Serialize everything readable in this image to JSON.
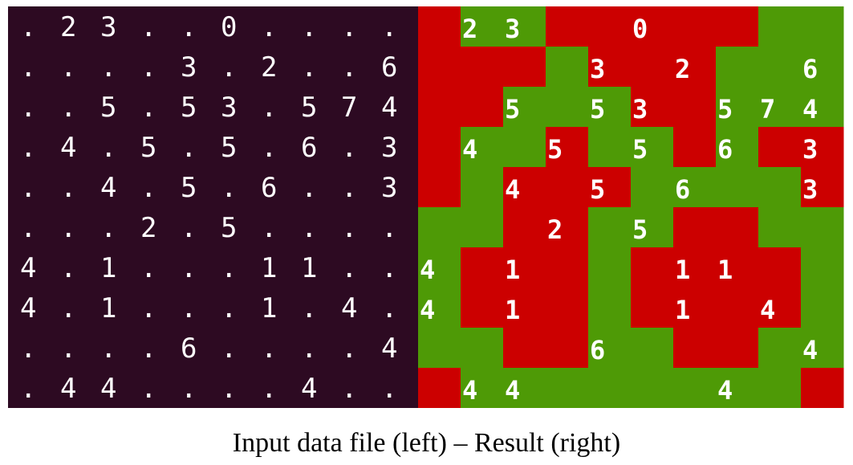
{
  "caption": "Input data file (left) – Result (right)",
  "colors": {
    "input_background": "#2d0a22",
    "input_text": "#ffffff",
    "result_red": "#cc0000",
    "result_green": "#4e9a06",
    "result_text": "#ffffff"
  },
  "input_grid": [
    [
      ".",
      "2",
      "3",
      ".",
      ".",
      "0",
      ".",
      ".",
      ".",
      "."
    ],
    [
      ".",
      ".",
      ".",
      ".",
      "3",
      ".",
      "2",
      ".",
      ".",
      "6"
    ],
    [
      ".",
      ".",
      "5",
      ".",
      "5",
      "3",
      ".",
      "5",
      "7",
      "4"
    ],
    [
      ".",
      "4",
      ".",
      "5",
      ".",
      "5",
      ".",
      "6",
      ".",
      "3"
    ],
    [
      ".",
      ".",
      "4",
      ".",
      "5",
      ".",
      "6",
      ".",
      ".",
      "3"
    ],
    [
      ".",
      ".",
      ".",
      "2",
      ".",
      "5",
      ".",
      ".",
      ".",
      "."
    ],
    [
      "4",
      ".",
      "1",
      ".",
      ".",
      ".",
      "1",
      "1",
      ".",
      "."
    ],
    [
      "4",
      ".",
      "1",
      ".",
      ".",
      ".",
      "1",
      ".",
      "4",
      "."
    ],
    [
      ".",
      ".",
      ".",
      ".",
      "6",
      ".",
      ".",
      ".",
      ".",
      "4"
    ],
    [
      ".",
      "4",
      "4",
      ".",
      ".",
      ".",
      ".",
      "4",
      ".",
      "."
    ]
  ],
  "result_colors": [
    [
      "R",
      "G",
      "G",
      "R",
      "R",
      "R",
      "R",
      "R",
      "G",
      "G"
    ],
    [
      "R",
      "R",
      "R",
      "G",
      "R",
      "R",
      "R",
      "G",
      "G",
      "G"
    ],
    [
      "R",
      "R",
      "G",
      "G",
      "G",
      "R",
      "R",
      "G",
      "G",
      "G"
    ],
    [
      "R",
      "G",
      "G",
      "R",
      "G",
      "G",
      "R",
      "G",
      "R",
      "R"
    ],
    [
      "R",
      "G",
      "R",
      "R",
      "R",
      "G",
      "G",
      "G",
      "G",
      "R"
    ],
    [
      "G",
      "G",
      "R",
      "R",
      "G",
      "G",
      "R",
      "R",
      "G",
      "G"
    ],
    [
      "G",
      "R",
      "R",
      "R",
      "G",
      "R",
      "R",
      "R",
      "R",
      "G"
    ],
    [
      "G",
      "R",
      "R",
      "R",
      "G",
      "R",
      "R",
      "R",
      "R",
      "G"
    ],
    [
      "G",
      "G",
      "R",
      "R",
      "G",
      "G",
      "R",
      "R",
      "G",
      "G"
    ],
    [
      "R",
      "G",
      "G",
      "G",
      "G",
      "G",
      "G",
      "G",
      "G",
      "R"
    ]
  ]
}
